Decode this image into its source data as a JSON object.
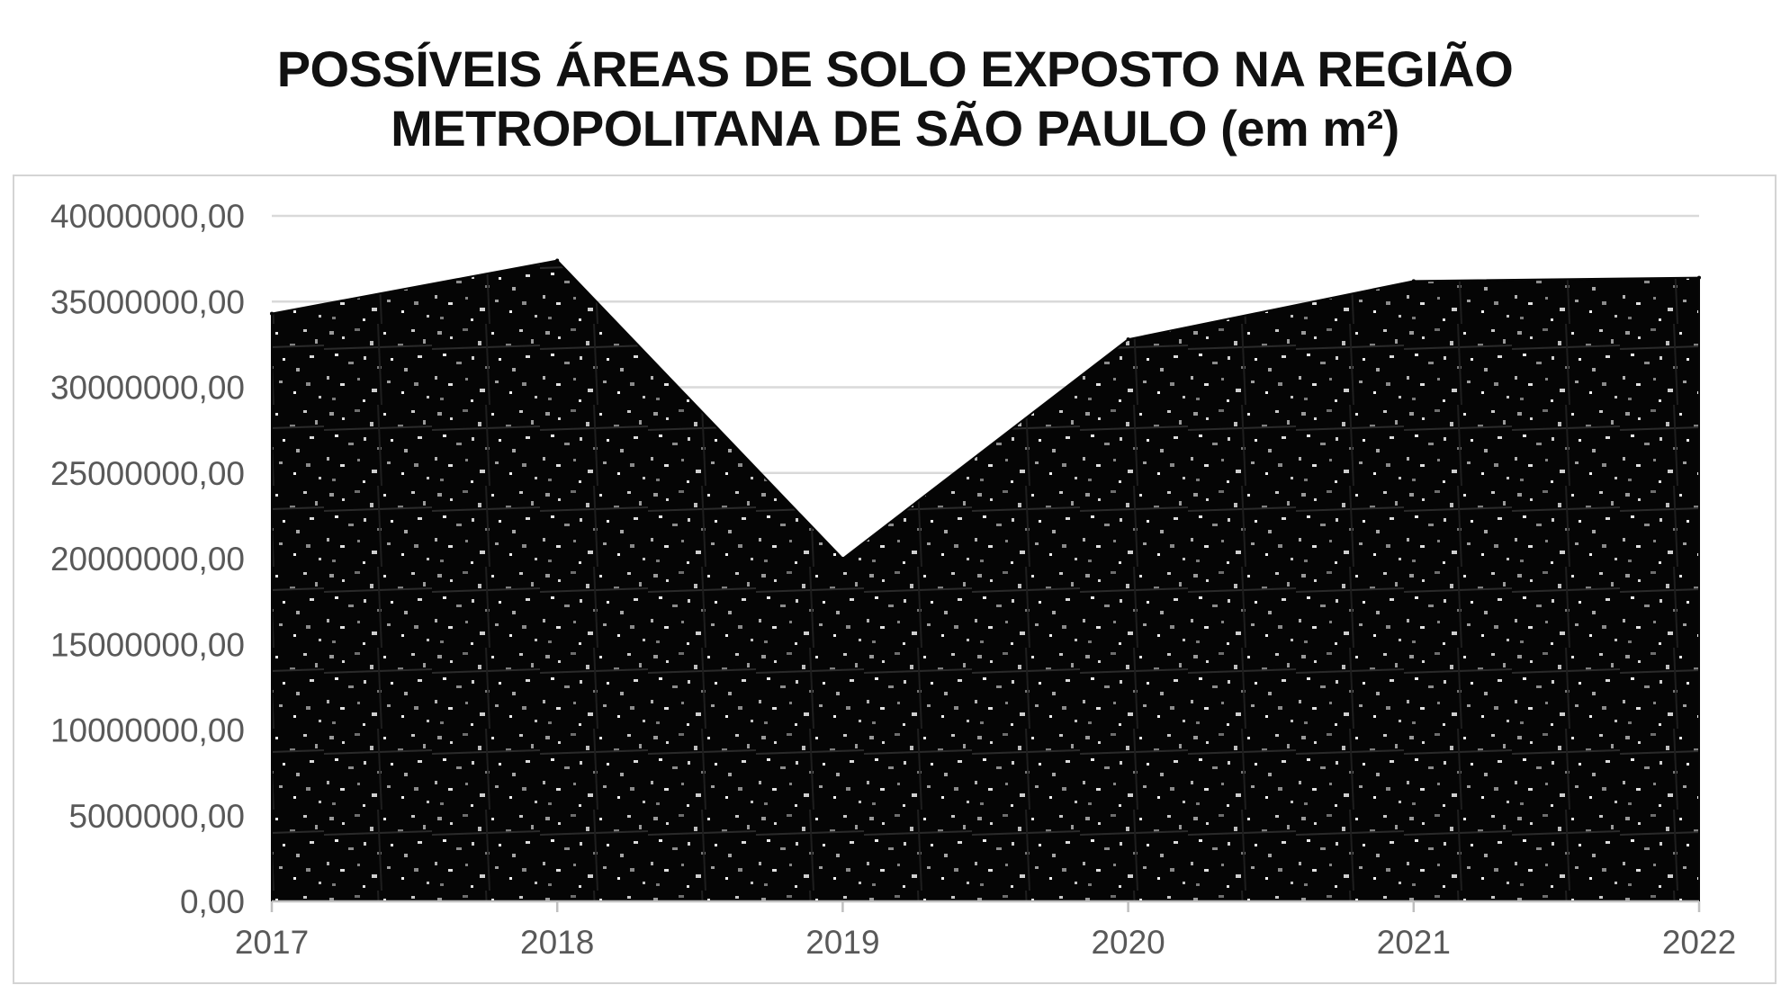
{
  "chart_data": {
    "type": "area",
    "title_lines": [
      "POSSÍVEIS ÁREAS DE SOLO EXPOSTO NA REGIÃO",
      "METROPOLITANA DE SÃO PAULO (em m²)"
    ],
    "xlabel": "",
    "ylabel": "",
    "x": [
      "2017",
      "2018",
      "2019",
      "2020",
      "2021",
      "2022"
    ],
    "values": [
      34300000,
      37400000,
      20000000,
      32800000,
      36200000,
      36400000
    ],
    "ylim": [
      0,
      40000000
    ],
    "yticks": [
      {
        "value": 0,
        "label": "0,00"
      },
      {
        "value": 5000000,
        "label": "5000000,00"
      },
      {
        "value": 10000000,
        "label": "10000000,00"
      },
      {
        "value": 15000000,
        "label": "15000000,00"
      },
      {
        "value": 20000000,
        "label": "20000000,00"
      },
      {
        "value": 25000000,
        "label": "25000000,00"
      },
      {
        "value": 30000000,
        "label": "30000000,00"
      },
      {
        "value": 35000000,
        "label": "35000000,00"
      },
      {
        "value": 40000000,
        "label": "40000000,00"
      }
    ],
    "grid": true,
    "legend": "none",
    "fill": "satellite-image-texture",
    "colors": {
      "fill": "#060606",
      "grid": "#d9d9d9",
      "axis": "#bfbfbf",
      "text": "#595959",
      "title": "#111111"
    }
  }
}
